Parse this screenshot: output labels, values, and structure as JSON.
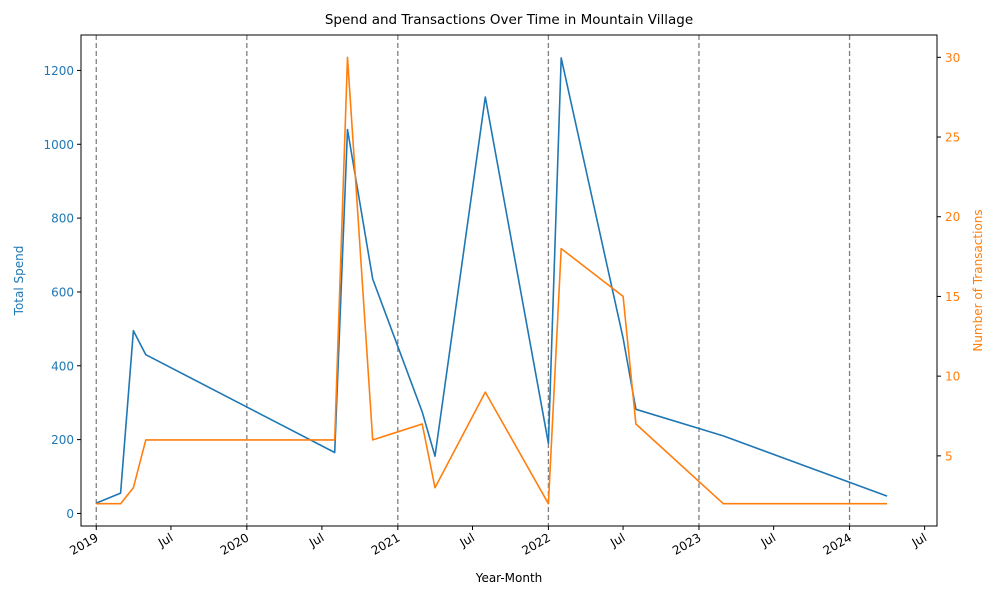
{
  "chart_data": {
    "type": "line",
    "title": "Spend and Transactions Over Time in Mountain Village",
    "xlabel": "Year-Month",
    "xlim": [
      "2018-11-25",
      "2024-07-31"
    ],
    "x_ticks": [
      {
        "date": "2019-01-01",
        "label": "2019"
      },
      {
        "date": "2019-07-01",
        "label": "Jul"
      },
      {
        "date": "2020-01-01",
        "label": "2020"
      },
      {
        "date": "2020-07-01",
        "label": "Jul"
      },
      {
        "date": "2021-01-01",
        "label": "2021"
      },
      {
        "date": "2021-07-01",
        "label": "Jul"
      },
      {
        "date": "2022-01-01",
        "label": "2022"
      },
      {
        "date": "2022-07-01",
        "label": "Jul"
      },
      {
        "date": "2023-01-01",
        "label": "2023"
      },
      {
        "date": "2023-07-01",
        "label": "Jul"
      },
      {
        "date": "2024-01-01",
        "label": "2024"
      },
      {
        "date": "2024-07-01",
        "label": "Jul"
      }
    ],
    "vertical_lines": [
      "2019-01-01",
      "2020-01-01",
      "2021-01-01",
      "2022-01-01",
      "2023-01-01",
      "2024-01-01"
    ],
    "series": [
      {
        "axis": "left",
        "color": "#1f77b4",
        "points": [
          [
            "2019-01-01",
            28
          ],
          [
            "2019-03-01",
            55
          ],
          [
            "2019-04-01",
            495
          ],
          [
            "2019-05-01",
            430
          ],
          [
            "2020-08-01",
            165
          ],
          [
            "2020-09-01",
            1040
          ],
          [
            "2020-11-01",
            635
          ],
          [
            "2021-03-01",
            275
          ],
          [
            "2021-04-01",
            155
          ],
          [
            "2021-08-01",
            1128
          ],
          [
            "2022-01-01",
            190
          ],
          [
            "2022-02-01",
            1234
          ],
          [
            "2022-07-01",
            475
          ],
          [
            "2022-08-01",
            282
          ],
          [
            "2023-03-01",
            210
          ],
          [
            "2024-04-01",
            47
          ]
        ]
      },
      {
        "axis": "right",
        "color": "#ff7f0e",
        "points": [
          [
            "2019-01-01",
            2
          ],
          [
            "2019-03-01",
            2
          ],
          [
            "2019-04-01",
            3
          ],
          [
            "2019-05-01",
            6
          ],
          [
            "2020-08-01",
            6
          ],
          [
            "2020-09-01",
            30
          ],
          [
            "2020-11-01",
            6
          ],
          [
            "2021-03-01",
            7
          ],
          [
            "2021-04-01",
            3
          ],
          [
            "2021-08-01",
            9
          ],
          [
            "2022-01-01",
            2
          ],
          [
            "2022-02-01",
            18
          ],
          [
            "2022-07-01",
            15
          ],
          [
            "2022-08-01",
            7
          ],
          [
            "2023-03-01",
            2
          ],
          [
            "2024-04-01",
            2
          ]
        ]
      }
    ],
    "left_axis": {
      "label": "Total Spend",
      "color": "#1f77b4",
      "ylim": [
        -34,
        1296
      ],
      "ticks": [
        0,
        200,
        400,
        600,
        800,
        1000,
        1200
      ]
    },
    "right_axis": {
      "label": "Number of Transactions",
      "color": "#ff7f0e",
      "ylim": [
        0.6,
        31.4
      ],
      "ticks": [
        5,
        10,
        15,
        20,
        25,
        30
      ]
    },
    "grid": false
  }
}
